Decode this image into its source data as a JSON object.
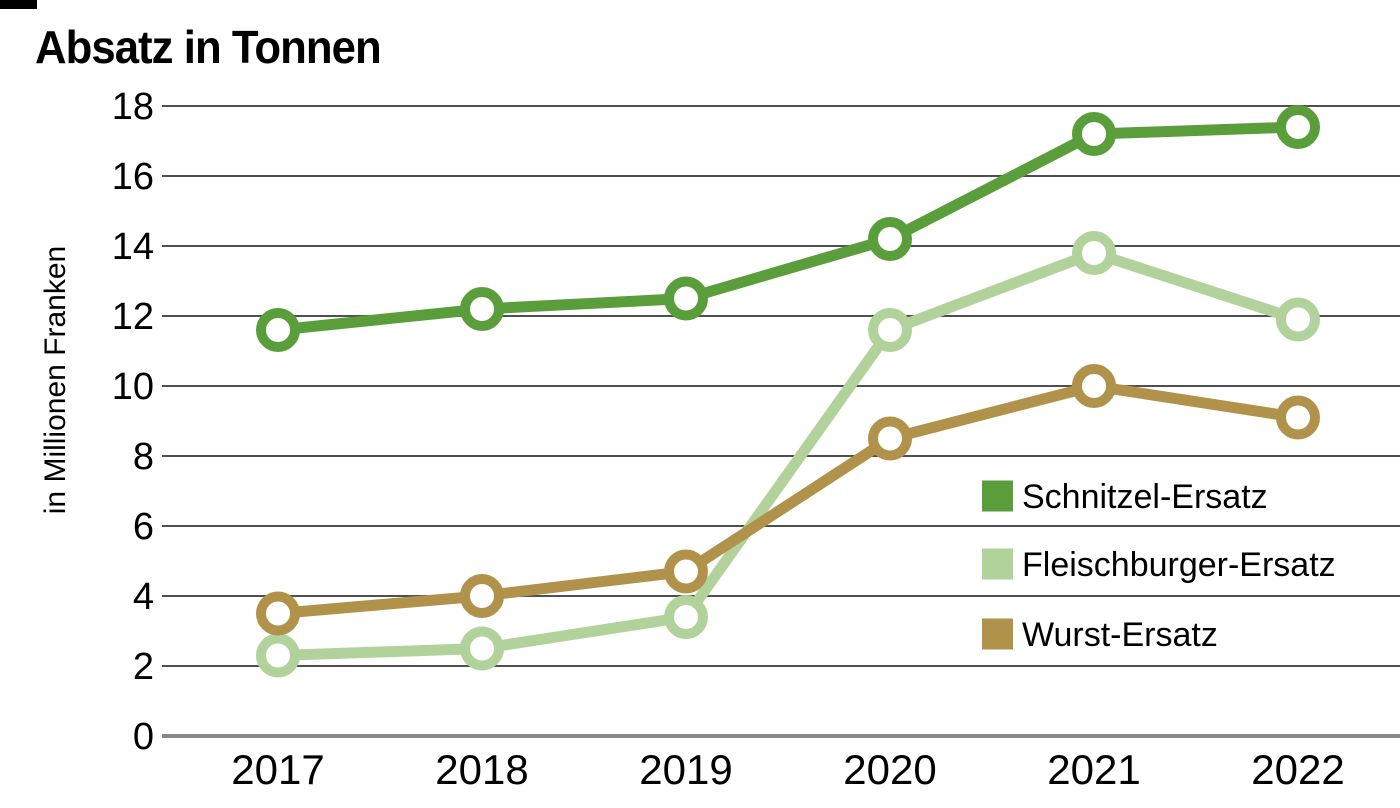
{
  "chart_data": {
    "type": "line",
    "title": "Absatz in Tonnen",
    "ylabel": "in Millionen Franken",
    "xlabel": "",
    "x": [
      "2017",
      "2018",
      "2019",
      "2020",
      "2021",
      "2022"
    ],
    "ylim": [
      0,
      18
    ],
    "yticks": [
      0,
      2,
      4,
      6,
      8,
      10,
      12,
      14,
      16,
      18
    ],
    "grid": "horizontal",
    "grid_color": "#4f4f4f",
    "baseline_color": "#878787",
    "marker": "open-circle",
    "legend_position": "inside-right",
    "series": [
      {
        "name": "Schnitzel-Ersatz",
        "color": "#5a9e3c",
        "values": [
          11.6,
          12.2,
          12.5,
          14.2,
          17.2,
          17.4
        ]
      },
      {
        "name": "Fleischburger-Ersatz",
        "color": "#b2d29b",
        "values": [
          2.3,
          2.5,
          3.4,
          11.6,
          13.8,
          11.9
        ]
      },
      {
        "name": "Wurst-Ersatz",
        "color": "#b0924a",
        "values": [
          3.5,
          4.0,
          4.7,
          8.5,
          10.0,
          9.1
        ]
      }
    ]
  }
}
